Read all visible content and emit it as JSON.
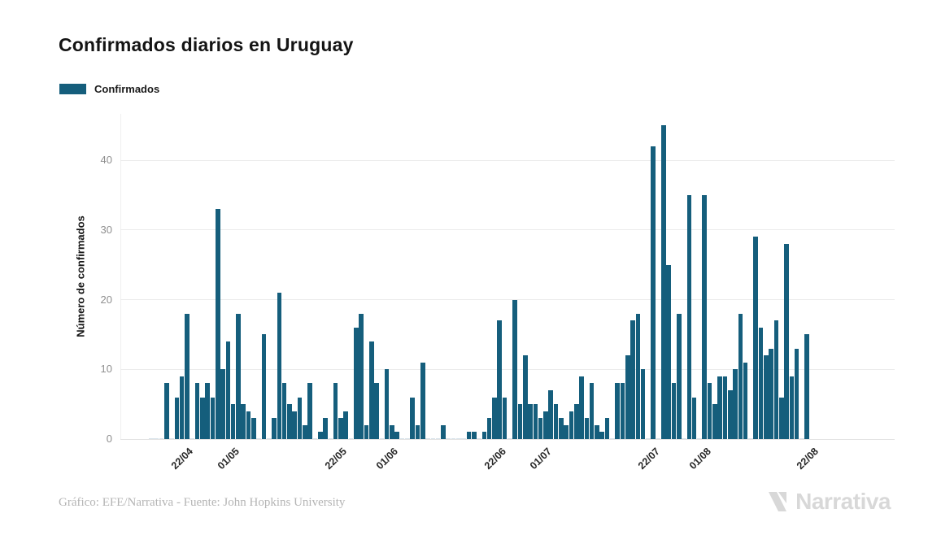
{
  "title": "Confirmados diarios en Uruguay",
  "legend": {
    "label": "Confirmados",
    "color": "#155E7C"
  },
  "footer": {
    "credit": "Gráfico: EFE/Narrativa - Fuente: John Hopkins University"
  },
  "brand": {
    "name": "Narrativa"
  },
  "chart_data": {
    "type": "bar",
    "title": "Confirmados diarios en Uruguay",
    "xlabel": "",
    "ylabel": "Número de confirmados",
    "ylim": [
      0,
      46.6
    ],
    "yticks": [
      0,
      10,
      20,
      30,
      40
    ],
    "grid": true,
    "legend_position": "top-left",
    "x_tick_labels": [
      "22/04",
      "01/05",
      "22/05",
      "01/06",
      "22/06",
      "01/07",
      "22/07",
      "01/08",
      "22/08"
    ],
    "x_tick_indices": [
      7,
      16,
      37,
      47,
      68,
      77,
      98,
      108,
      129
    ],
    "series": [
      {
        "name": "Confirmados",
        "color": "#155E7C",
        "values": [
          0,
          0,
          0,
          8,
          0,
          6,
          9,
          18,
          0,
          8,
          6,
          8,
          6,
          33,
          10,
          14,
          5,
          18,
          5,
          4,
          3,
          0,
          15,
          0,
          3,
          21,
          8,
          5,
          4,
          6,
          2,
          8,
          0,
          1,
          3,
          0,
          8,
          3,
          4,
          0,
          16,
          18,
          2,
          14,
          8,
          0,
          10,
          2,
          1,
          0,
          0,
          6,
          2,
          11,
          0,
          0,
          0,
          2,
          0,
          0,
          0,
          0,
          1,
          1,
          0,
          1,
          3,
          6,
          17,
          6,
          0,
          20,
          5,
          12,
          5,
          5,
          3,
          4,
          7,
          5,
          3,
          2,
          4,
          5,
          9,
          3,
          8,
          2,
          1,
          3,
          0,
          8,
          8,
          12,
          17,
          18,
          10,
          0,
          42,
          0,
          45,
          25,
          8,
          18,
          0,
          35,
          6,
          0,
          35,
          8,
          5,
          9,
          9,
          7,
          10,
          18,
          11,
          0,
          29,
          16,
          12,
          13,
          17,
          6,
          28,
          9,
          13,
          0,
          15
        ]
      }
    ]
  }
}
